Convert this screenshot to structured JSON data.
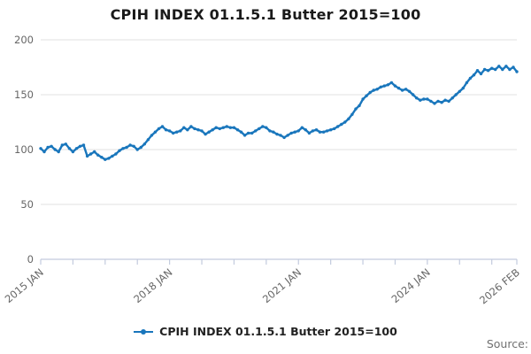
{
  "title": "CPIH INDEX 01.1.5.1 Butter 2015=100",
  "legend": {
    "label": "CPIH INDEX 01.1.5.1 Butter 2015=100"
  },
  "source_label": "Source:",
  "colors": {
    "series_line": "#1976bc",
    "gridline": "#e0e0e0",
    "axis": "#c3cbde",
    "tick_label": "#666666",
    "title_text": "#1a1a1a",
    "legend_text": "#222222",
    "source_text": "#707070"
  },
  "chart_data": {
    "type": "line",
    "title": "CPIH INDEX 01.1.5.1 Butter 2015=100",
    "xlabel": "",
    "ylabel": "",
    "ylim": [
      0,
      200
    ],
    "y_ticks": [
      0,
      50,
      100,
      150,
      200
    ],
    "grid": true,
    "legend_position": "bottom-center",
    "frequency": "monthly",
    "x_start": "2015 JAN",
    "x_end": "2026 FEB",
    "minor_tick_interval_months": 9,
    "x_tick_labels": [
      {
        "label": "2015 JAN",
        "month_index": 0
      },
      {
        "label": "2018 JAN",
        "month_index": 36
      },
      {
        "label": "2021 JAN",
        "month_index": 72
      },
      {
        "label": "2024 JAN",
        "month_index": 108
      },
      {
        "label": "2026 FEB",
        "month_index": 133
      }
    ],
    "series": [
      {
        "name": "CPIH INDEX 01.1.5.1 Butter 2015=100",
        "color": "#1976bc",
        "marker": "circle",
        "values": [
          101,
          98,
          102,
          103,
          100,
          98,
          104,
          105,
          101,
          98,
          101,
          103,
          104,
          94,
          96,
          98,
          95,
          93,
          91,
          92,
          94,
          96,
          99,
          101,
          102,
          104,
          103,
          100,
          102,
          105,
          109,
          113,
          116,
          119,
          121,
          118,
          117,
          115,
          116,
          117,
          120,
          118,
          121,
          119,
          118,
          117,
          114,
          116,
          118,
          120,
          119,
          120,
          121,
          120,
          120,
          118,
          116,
          113,
          115,
          115,
          117,
          119,
          121,
          120,
          117,
          116,
          114,
          113,
          111,
          113,
          115,
          116,
          117,
          120,
          118,
          115,
          117,
          118,
          116,
          116,
          117,
          118,
          119,
          121,
          123,
          125,
          128,
          132,
          137,
          140,
          146,
          149,
          152,
          154,
          155,
          157,
          158,
          159,
          161,
          158,
          156,
          154,
          155,
          153,
          150,
          147,
          145,
          146,
          146,
          144,
          142,
          144,
          143,
          145,
          144,
          147,
          150,
          153,
          156,
          161,
          165,
          168,
          172,
          169,
          173,
          172,
          174,
          173,
          176,
          173,
          176,
          173,
          175,
          171
        ]
      }
    ]
  }
}
